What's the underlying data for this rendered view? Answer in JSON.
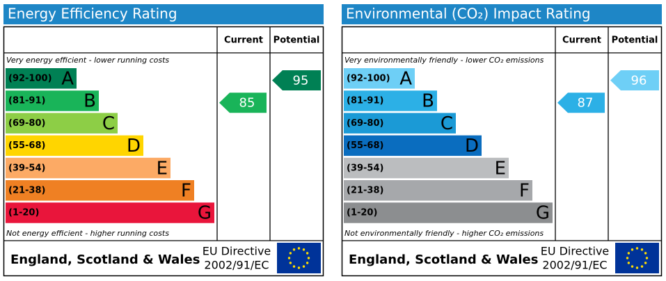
{
  "panels": [
    {
      "title": "Energy Efficiency Rating",
      "headers": [
        "Current",
        "Potential"
      ],
      "top_note": "Very energy efficient - lower running costs",
      "bottom_note": "Not energy efficient - higher running costs",
      "bands": [
        {
          "range": "(92-100)",
          "letter": "A",
          "color": "#008054"
        },
        {
          "range": "(81-91)",
          "letter": "B",
          "color": "#19b459"
        },
        {
          "range": "(69-80)",
          "letter": "C",
          "color": "#8dce46"
        },
        {
          "range": "(55-68)",
          "letter": "D",
          "color": "#ffd500"
        },
        {
          "range": "(39-54)",
          "letter": "E",
          "color": "#fcaa65"
        },
        {
          "range": "(21-38)",
          "letter": "F",
          "color": "#ef8023"
        },
        {
          "range": "(1-20)",
          "letter": "G",
          "color": "#e9153b"
        }
      ],
      "current": 85,
      "potential": 95,
      "country": "England, Scotland & Wales",
      "directive": [
        "EU Directive",
        "2002/91/EC"
      ]
    },
    {
      "title": "Environmental (CO₂) Impact Rating",
      "headers": [
        "Current",
        "Potential"
      ],
      "top_note": "Very environmentally friendly - lower CO₂ emissions",
      "bottom_note": "Not environmentally friendly - higher CO₂ emissions",
      "bands": [
        {
          "range": "(92-100)",
          "letter": "A",
          "color": "#6ecff6"
        },
        {
          "range": "(81-91)",
          "letter": "B",
          "color": "#2cb0e6"
        },
        {
          "range": "(69-80)",
          "letter": "C",
          "color": "#1b9ad6"
        },
        {
          "range": "(55-68)",
          "letter": "D",
          "color": "#0a6dbf"
        },
        {
          "range": "(39-54)",
          "letter": "E",
          "color": "#bbbdbf"
        },
        {
          "range": "(21-38)",
          "letter": "F",
          "color": "#a6a8ab"
        },
        {
          "range": "(1-20)",
          "letter": "G",
          "color": "#8c8e90"
        }
      ],
      "current": 87,
      "potential": 96,
      "country": "England, Scotland & Wales",
      "directive": [
        "EU Directive",
        "2002/91/EC"
      ]
    }
  ]
}
